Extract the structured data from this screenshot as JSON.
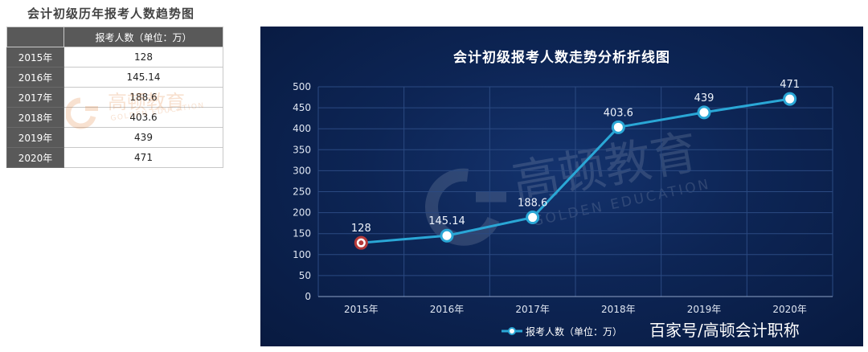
{
  "page_title": "会计初级历年报考人数趋势图",
  "table": {
    "header": [
      "",
      "报考人数（单位：万）"
    ],
    "rows": [
      {
        "year": "2015年",
        "value": "128"
      },
      {
        "year": "2016年",
        "value": "145.14"
      },
      {
        "year": "2017年",
        "value": "188.6"
      },
      {
        "year": "2018年",
        "value": "403.6"
      },
      {
        "year": "2019年",
        "value": "439"
      },
      {
        "year": "2020年",
        "value": "471"
      }
    ]
  },
  "watermark": {
    "brand": "高顿教育",
    "brand_en": "GOLDEN EDUCATION"
  },
  "source_text": "百家号/高顿会计职称",
  "colors": {
    "line": "#2aa7d6",
    "first_marker": "#b53a3a",
    "panel_bg": "#0d2555",
    "table_header": "#595959"
  },
  "chart_data": {
    "type": "line",
    "title": "会计初级报考人数走势分析折线图",
    "categories": [
      "2015年",
      "2016年",
      "2017年",
      "2018年",
      "2019年",
      "2020年"
    ],
    "series": [
      {
        "name": "报考人数（单位：万）",
        "values": [
          128,
          145.14,
          188.6,
          403.6,
          439,
          471
        ]
      }
    ],
    "data_labels": [
      "128",
      "145.14",
      "188.6",
      "403.6",
      "439",
      "471"
    ],
    "y_ticks": [
      0,
      50,
      100,
      150,
      200,
      250,
      300,
      350,
      400,
      450,
      500
    ],
    "ylim": [
      0,
      500
    ],
    "xlabel": "",
    "ylabel": "",
    "grid": true,
    "legend_position": "bottom-center"
  }
}
